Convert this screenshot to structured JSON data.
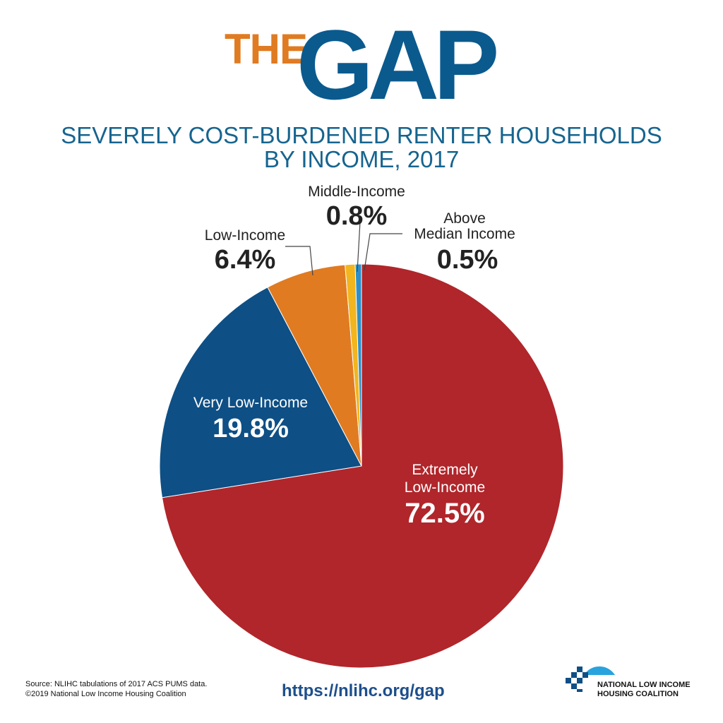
{
  "header": {
    "the": "THE",
    "gap": "GAP",
    "subtitle_line1": "SEVERELY COST-BURDENED RENTER HOUSEHOLDS",
    "subtitle_line2": "BY INCOME, 2017"
  },
  "chart_data": {
    "type": "pie",
    "title": "SEVERELY COST-BURDENED RENTER HOUSEHOLDS BY INCOME, 2017",
    "unit": "%",
    "slices": [
      {
        "label": "Extremely Low-Income",
        "value": 72.5,
        "display": "72.5%",
        "color": "#b0262b"
      },
      {
        "label": "Very Low-Income",
        "value": 19.8,
        "display": "19.8%",
        "color": "#0e4f85"
      },
      {
        "label": "Low-Income",
        "value": 6.4,
        "display": "6.4%",
        "color": "#e07b22"
      },
      {
        "label": "Middle-Income",
        "value": 0.8,
        "display": "0.8%",
        "color": "#f2b51e"
      },
      {
        "label": "Above Median Income",
        "value": 0.5,
        "display": "0.5%",
        "color": "#2e8fc7"
      }
    ]
  },
  "labels": {
    "extremely_low_1": "Extremely",
    "extremely_low_2": "Low-Income",
    "very_low": "Very Low-Income",
    "low": "Low-Income",
    "middle": "Middle-Income",
    "above_1": "Above",
    "above_2": "Median Income"
  },
  "footer": {
    "source_line1": "Source: NLIHC tabulations of 2017 ACS PUMS data.",
    "source_line2": "©2019 National Low Income Housing Coalition",
    "url": "https://nlihc.org/gap",
    "logo_line1": "NATIONAL LOW INCOME",
    "logo_line2": "HOUSING COALITION"
  }
}
